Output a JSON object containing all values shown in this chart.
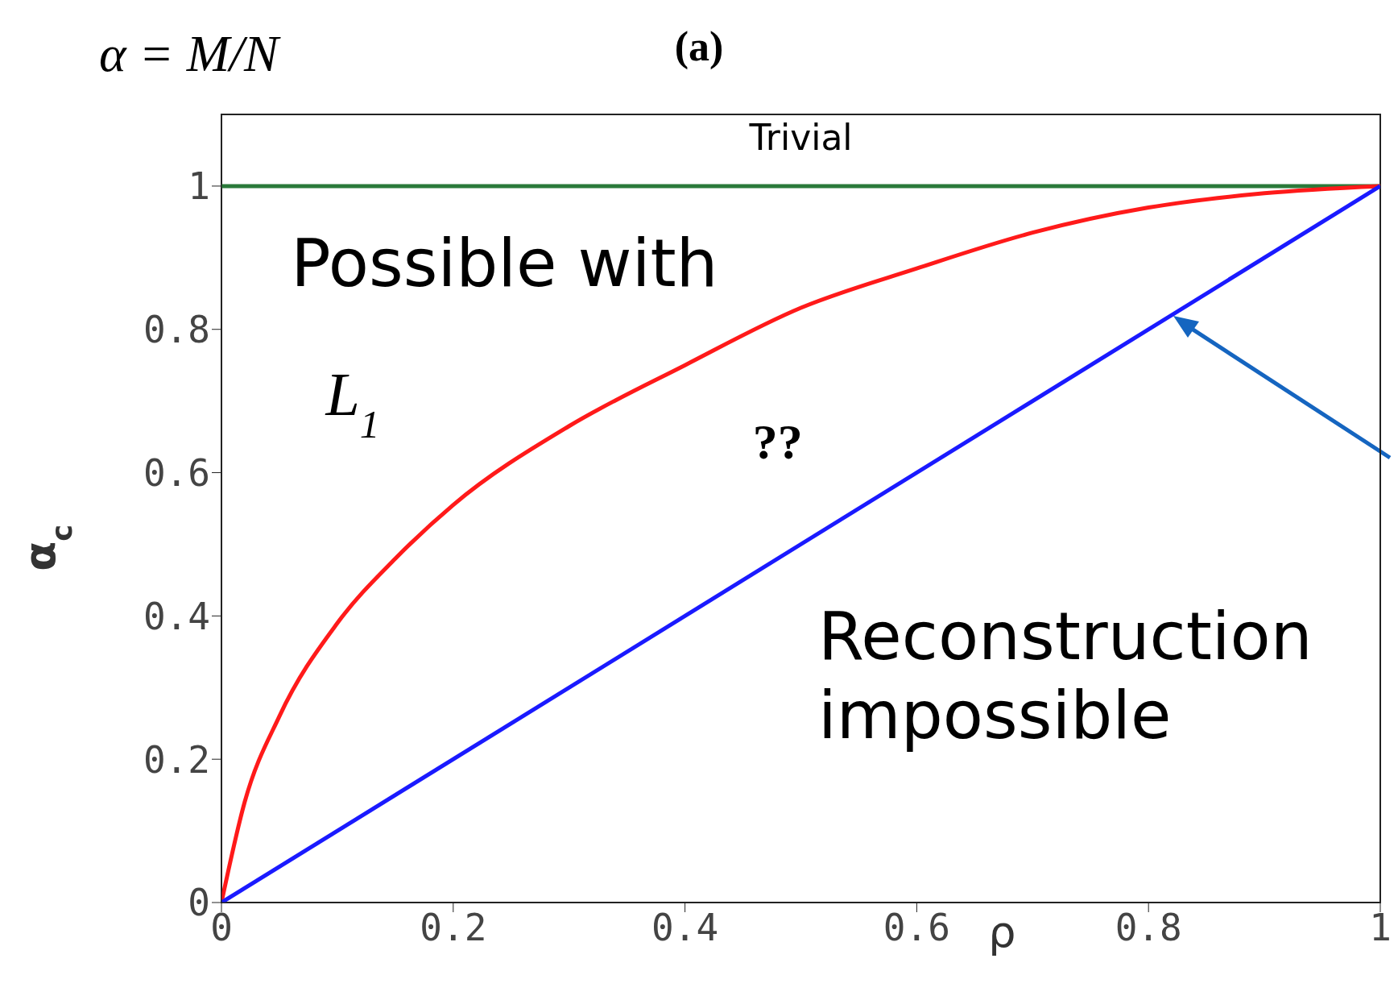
{
  "chart_data": {
    "type": "line",
    "title": "(a)",
    "xlabel": "ρ",
    "ylabel": "α$_{c}$",
    "xlim": [
      0,
      1
    ],
    "ylim": [
      0,
      1.1
    ],
    "xticks": [
      0,
      0.2,
      0.4,
      0.6,
      0.8,
      1
    ],
    "yticks": [
      0,
      0.2,
      0.4,
      0.6,
      0.8,
      1
    ],
    "marker": "none",
    "line_style": "solid",
    "series": [
      {
        "color": "#2a7a3a",
        "x": [
          0,
          1
        ],
        "values": [
          1,
          1
        ]
      },
      {
        "color": "#ff1a1a",
        "x": [
          0,
          0.02,
          0.05,
          0.1,
          0.15,
          0.2,
          0.3,
          0.4,
          0.5,
          0.6,
          0.7,
          0.8,
          0.9,
          1
        ],
        "values": [
          0,
          0.14,
          0.26,
          0.39,
          0.48,
          0.555,
          0.665,
          0.75,
          0.83,
          0.885,
          0.935,
          0.97,
          0.99,
          1
        ]
      },
      {
        "color": "#1a1aff",
        "x": [
          0,
          1
        ],
        "values": [
          0,
          1
        ]
      }
    ],
    "annotations": [
      "α = M/N",
      "Trivial",
      "Possible with",
      "L$_{1}$",
      "??",
      "Reconstruction\nimpossible"
    ]
  }
}
